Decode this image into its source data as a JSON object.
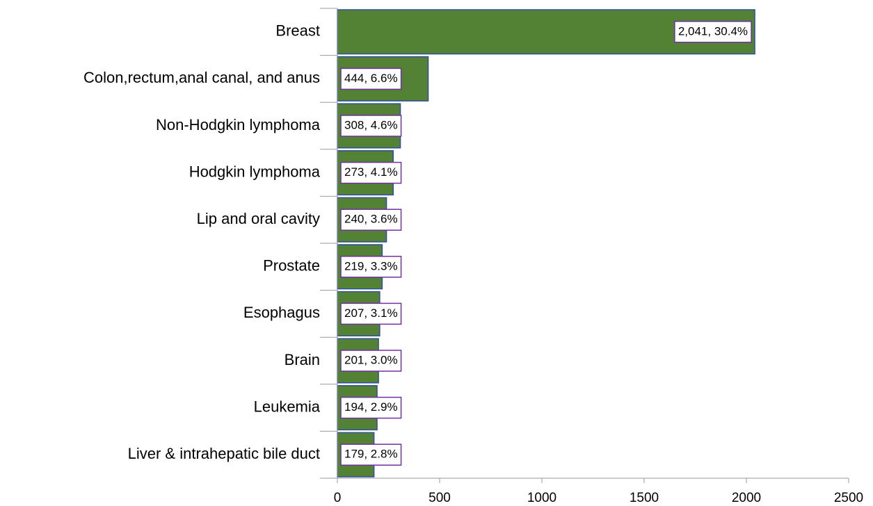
{
  "chart_data": {
    "type": "barh",
    "categories": [
      "Breast",
      "Colon,rectum,anal canal, and anus",
      "Non-Hodgkin lymphoma",
      "Hodgkin lymphoma",
      "Lip and oral cavity",
      "Prostate",
      "Esophagus",
      "Brain",
      "Leukemia",
      "Liver & intrahepatic bile duct"
    ],
    "values": [
      2041,
      444,
      308,
      273,
      240,
      219,
      207,
      201,
      194,
      179
    ],
    "value_labels": [
      "2,041, 30.4%",
      "444, 6.6%",
      "308, 4.6%",
      "273, 4.1%",
      "240, 3.6%",
      "219, 3.3%",
      "207, 3.1%",
      "201, 3.0%",
      "194, 2.9%",
      "179, 2.8%"
    ],
    "color": "#548235",
    "xlim": [
      0,
      2500
    ],
    "xticks": [
      0,
      500,
      1000,
      1500,
      2000,
      2500
    ]
  }
}
